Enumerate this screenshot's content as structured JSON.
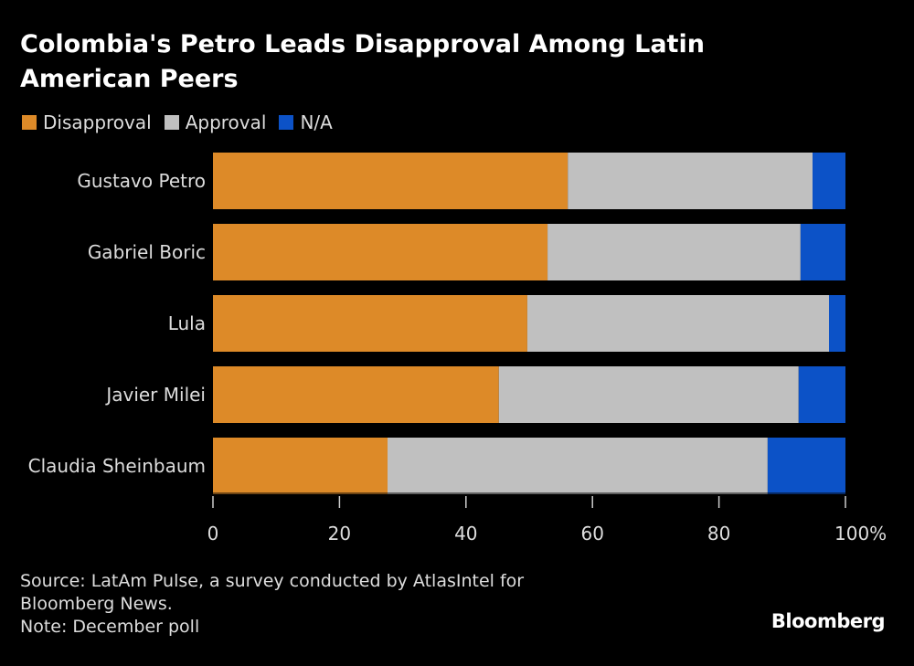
{
  "chart_data": {
    "type": "bar",
    "orientation": "horizontal",
    "stacked": true,
    "title": "Colombia's Petro Leads Disapproval Among Latin American Peers",
    "categories": [
      "Gustavo Petro",
      "Gabriel Boric",
      "Lula",
      "Javier Milei",
      "Claudia Sheinbaum"
    ],
    "series": [
      {
        "name": "Disapproval",
        "color": "#dd8a28",
        "values": [
          56.1,
          52.9,
          49.7,
          45.2,
          27.6
        ]
      },
      {
        "name": "Approval",
        "color": "#c0c0c0",
        "values": [
          38.7,
          40.0,
          47.7,
          47.4,
          60.1
        ]
      },
      {
        "name": "N/A",
        "color": "#0c52c7",
        "values": [
          5.2,
          7.1,
          2.6,
          7.4,
          12.3
        ]
      }
    ],
    "xlim": [
      0,
      100
    ],
    "xticks": [
      0,
      20,
      40,
      60,
      80,
      100
    ],
    "xtick_labels": [
      "0",
      "20",
      "40",
      "60",
      "80",
      "100%"
    ],
    "legend": "top-left",
    "grid": false
  },
  "notes": {
    "source": "Source: LatAm Pulse, a survey conducted by AtlasIntel for",
    "source2": "Bloomberg News.",
    "note": "Note: December poll"
  },
  "logo": "Bloomberg"
}
